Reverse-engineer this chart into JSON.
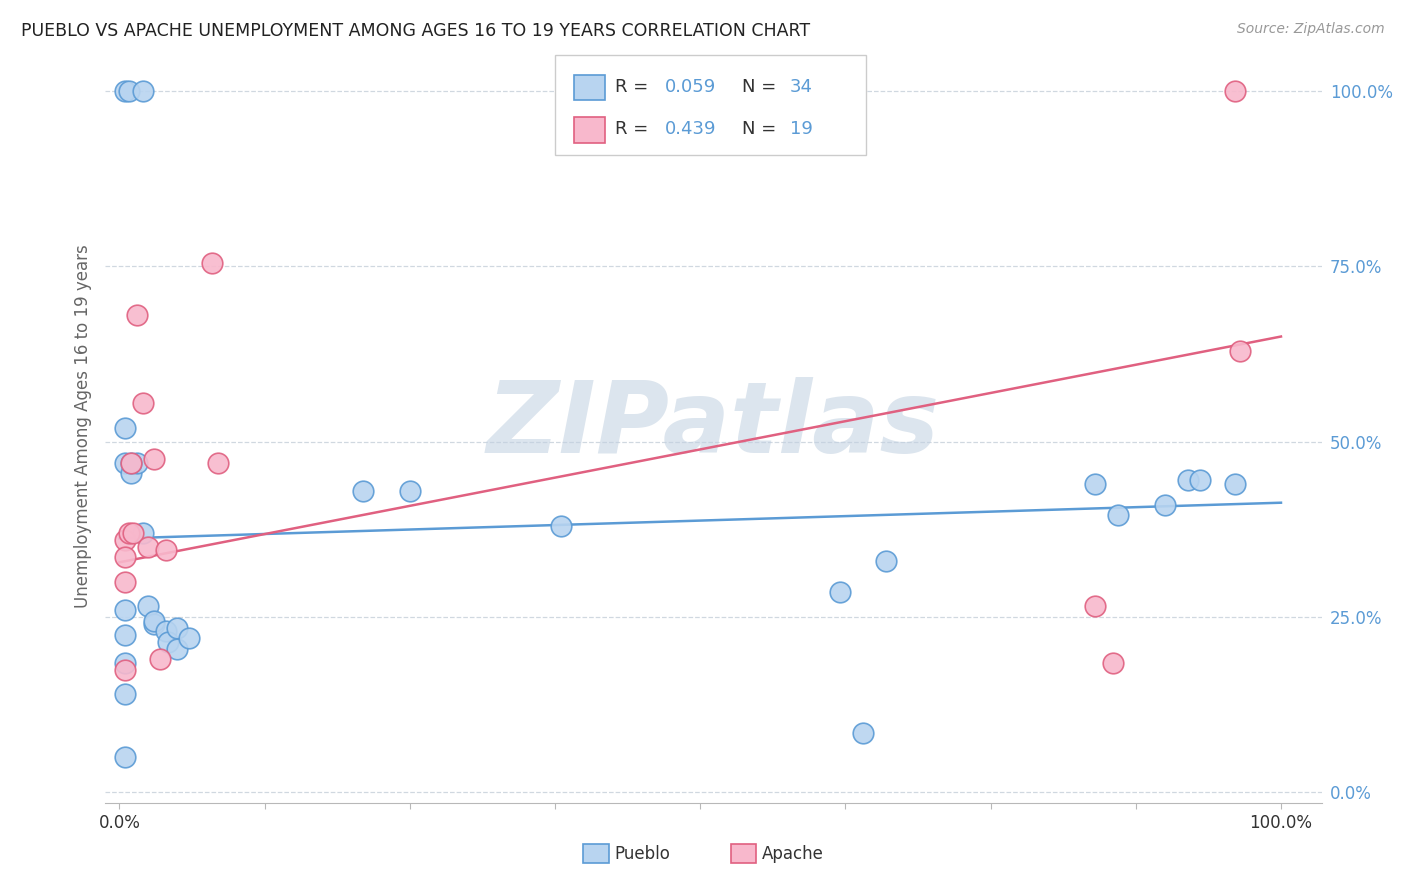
{
  "title": "PUEBLO VS APACHE UNEMPLOYMENT AMONG AGES 16 TO 19 YEARS CORRELATION CHART",
  "source": "Source: ZipAtlas.com",
  "ylabel": "Unemployment Among Ages 16 to 19 years",
  "background_color": "#ffffff",
  "pueblo_color": "#b8d4f0",
  "apache_color": "#f8b8cc",
  "pueblo_edge_color": "#5b9bd5",
  "apache_edge_color": "#e06080",
  "pueblo_line_color": "#5b9bd5",
  "apache_line_color": "#e06080",
  "right_tick_color": "#5b9bd5",
  "grid_color": "#d0d8e0",
  "watermark": "ZIPatlas",
  "watermark_color": "#c0d0e0",
  "pueblo_x": [
    0.005,
    0.008,
    0.02,
    0.005,
    0.005,
    0.01,
    0.015,
    0.01,
    0.02,
    0.025,
    0.03,
    0.03,
    0.04,
    0.042,
    0.05,
    0.05,
    0.06,
    0.25,
    0.38,
    0.62,
    0.64,
    0.66,
    0.84,
    0.86,
    0.9,
    0.92,
    0.93,
    0.96,
    0.005,
    0.005,
    0.005,
    0.005,
    0.21,
    0.005
  ],
  "pueblo_y": [
    1.0,
    1.0,
    1.0,
    0.52,
    0.47,
    0.455,
    0.47,
    0.47,
    0.37,
    0.265,
    0.24,
    0.245,
    0.23,
    0.215,
    0.235,
    0.205,
    0.22,
    0.43,
    0.38,
    0.285,
    0.085,
    0.33,
    0.44,
    0.395,
    0.41,
    0.445,
    0.445,
    0.44,
    0.26,
    0.225,
    0.185,
    0.14,
    0.43,
    0.05
  ],
  "apache_x": [
    0.005,
    0.005,
    0.005,
    0.008,
    0.01,
    0.012,
    0.015,
    0.02,
    0.025,
    0.03,
    0.035,
    0.04,
    0.08,
    0.085,
    0.84,
    0.855,
    0.96,
    0.965,
    0.005
  ],
  "apache_y": [
    0.36,
    0.335,
    0.3,
    0.37,
    0.47,
    0.37,
    0.68,
    0.555,
    0.35,
    0.475,
    0.19,
    0.345,
    0.755,
    0.47,
    0.265,
    0.185,
    1.0,
    0.63,
    0.175
  ],
  "pueblo_trend": [
    0.362,
    0.413
  ],
  "apache_trend": [
    0.328,
    0.65
  ],
  "ytick_values": [
    0.0,
    0.25,
    0.5,
    0.75,
    1.0
  ],
  "ytick_labels": [
    "0.0%",
    "25.0%",
    "50.0%",
    "75.0%",
    "100.0%"
  ],
  "xtick_values": [
    0.0,
    0.125,
    0.25,
    0.375,
    0.5,
    0.625,
    0.75,
    0.875,
    1.0
  ],
  "xlim": [
    -0.012,
    1.035
  ],
  "ylim": [
    -0.015,
    1.06
  ]
}
